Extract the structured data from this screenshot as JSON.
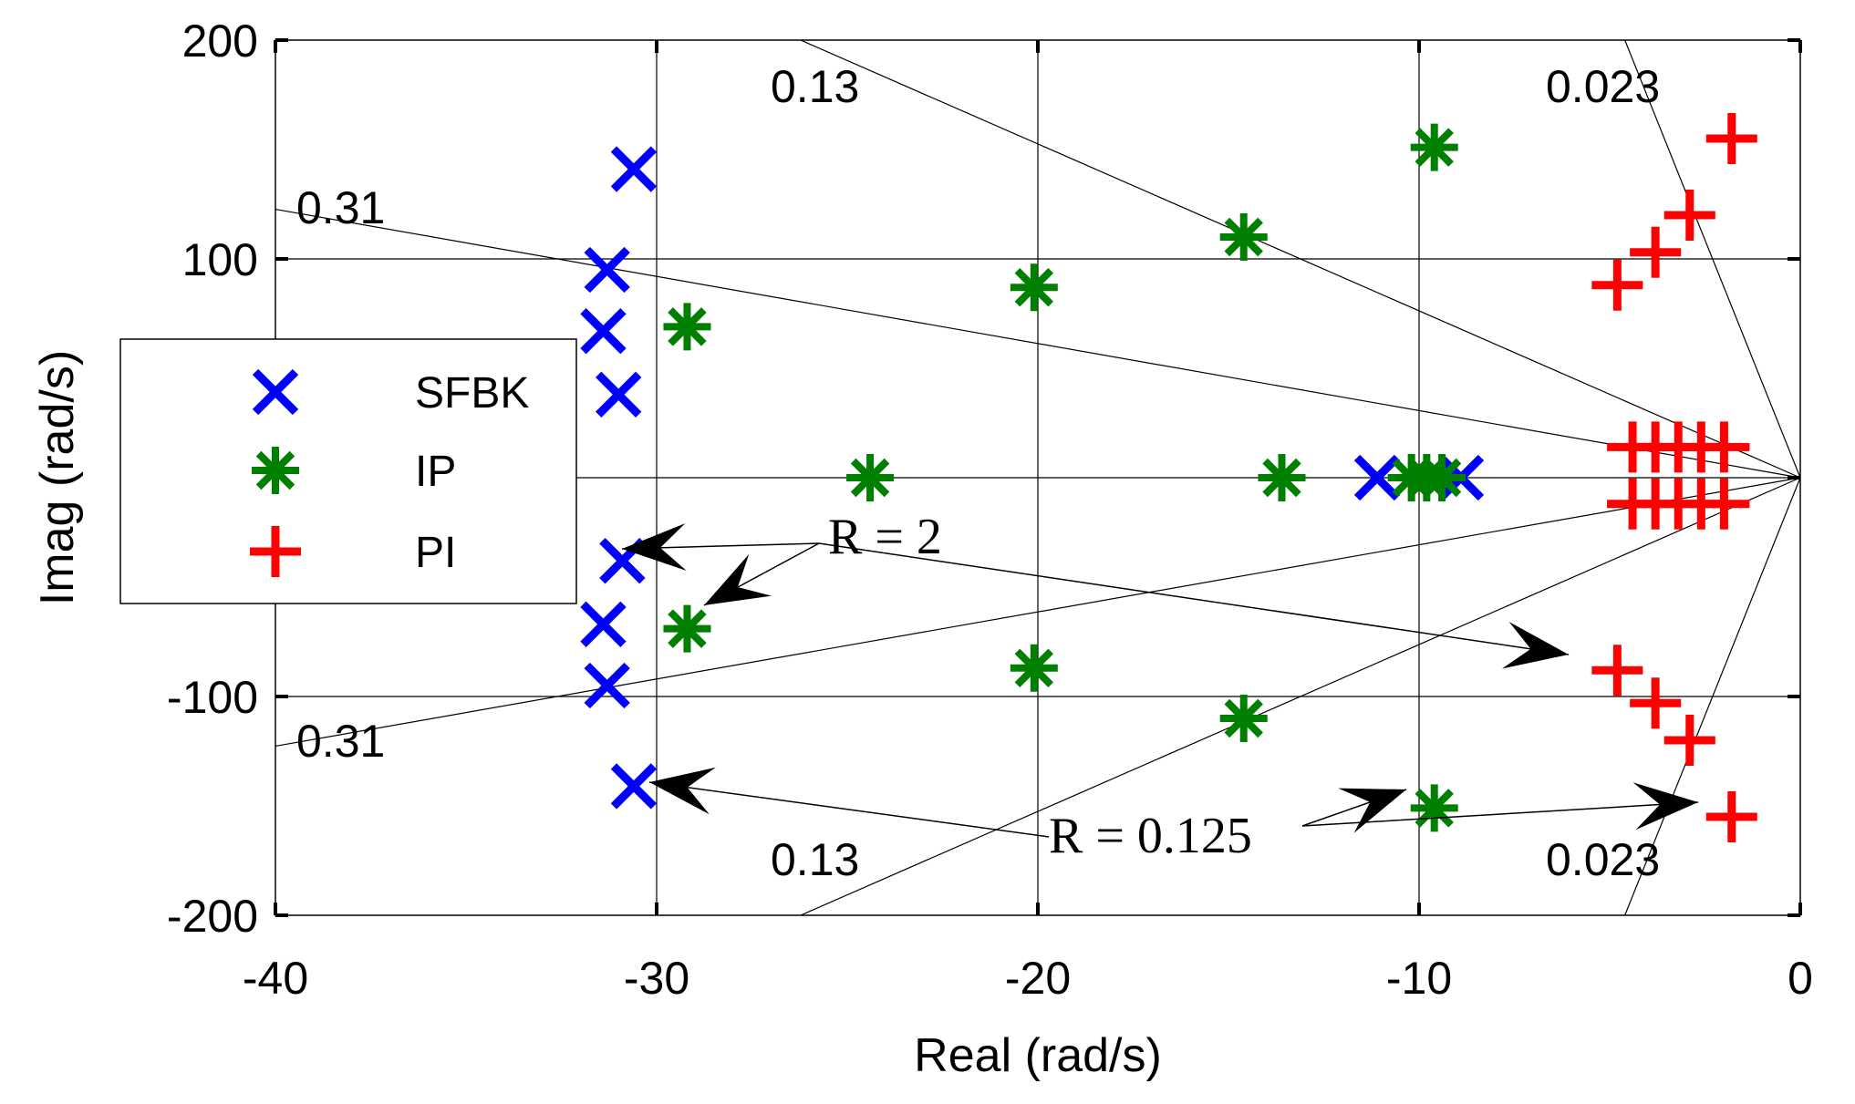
{
  "chart_data": {
    "type": "scatter",
    "title": "",
    "xlabel": "Real (rad/s)",
    "ylabel": "Imag (rad/s)",
    "xlim": [
      -40,
      0
    ],
    "ylim": [
      -200,
      200
    ],
    "xticks": [
      "-40",
      "-30",
      "-20",
      "-10",
      "0"
    ],
    "yticks": [
      "200",
      "100",
      "-100",
      "-200"
    ],
    "grid": true,
    "legend_position": "center-left",
    "damping_labels": [
      "0.31",
      "0.13",
      "0.023",
      "0.31",
      "0.13",
      "0.023"
    ],
    "damping_ratios": [
      0.31,
      0.13,
      0.023
    ],
    "series": [
      {
        "name": "SFBK",
        "marker": "x",
        "color": "#0000ff",
        "points": [
          [
            -30.6,
            141
          ],
          [
            -31.3,
            95
          ],
          [
            -31.4,
            67
          ],
          [
            -31.0,
            38
          ],
          [
            -30.9,
            -38
          ],
          [
            -31.4,
            -67
          ],
          [
            -31.3,
            -95
          ],
          [
            -30.6,
            -141
          ],
          [
            -11.1,
            0
          ],
          [
            -8.9,
            0
          ]
        ]
      },
      {
        "name": "IP",
        "marker": "*",
        "color": "#008000",
        "points": [
          [
            -9.6,
            151
          ],
          [
            -14.6,
            110
          ],
          [
            -20.1,
            87
          ],
          [
            -29.2,
            69
          ],
          [
            -24.4,
            0
          ],
          [
            -13.6,
            0
          ],
          [
            -10.2,
            0
          ],
          [
            -9.8,
            0
          ],
          [
            -9.4,
            0
          ],
          [
            -29.2,
            -69
          ],
          [
            -20.1,
            -87
          ],
          [
            -14.6,
            -110
          ],
          [
            -9.6,
            -151
          ]
        ]
      },
      {
        "name": "PI",
        "marker": "+",
        "color": "#ff0000",
        "points": [
          [
            -1.8,
            155
          ],
          [
            -2.9,
            120
          ],
          [
            -3.8,
            103
          ],
          [
            -4.8,
            88
          ],
          [
            -4.4,
            14
          ],
          [
            -3.8,
            14
          ],
          [
            -3.2,
            14
          ],
          [
            -2.6,
            14
          ],
          [
            -2.0,
            14
          ],
          [
            -4.4,
            -12
          ],
          [
            -3.8,
            -12
          ],
          [
            -3.2,
            -12
          ],
          [
            -2.6,
            -12
          ],
          [
            -2.0,
            -12
          ],
          [
            -4.8,
            -88
          ],
          [
            -3.8,
            -103
          ],
          [
            -2.9,
            -120
          ],
          [
            -1.8,
            -155
          ]
        ]
      }
    ],
    "annotations": [
      {
        "text": "R = 2"
      },
      {
        "text": "R = 0.125"
      }
    ]
  }
}
